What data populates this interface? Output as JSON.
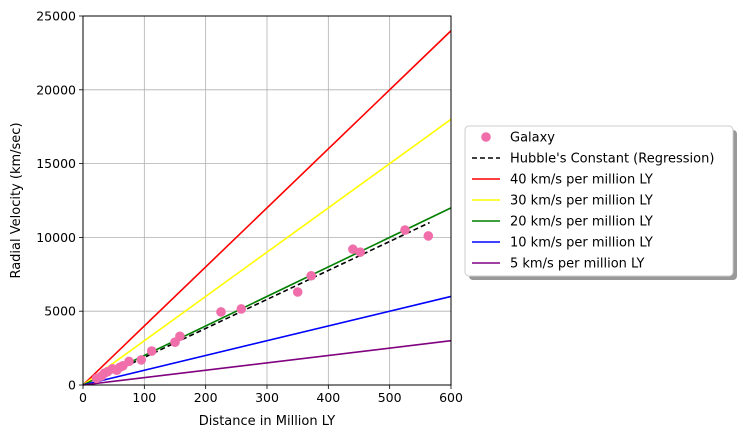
{
  "chart_data": {
    "type": "scatter",
    "xlabel": "Distance in Million LY",
    "ylabel": "Radial Velocity (km/sec)",
    "xlim": [
      0,
      600
    ],
    "ylim": [
      0,
      25000
    ],
    "xticks": [
      "0",
      "100",
      "200",
      "300",
      "400",
      "500",
      "600"
    ],
    "yticks": [
      "0",
      "5000",
      "10000",
      "15000",
      "20000",
      "25000"
    ],
    "grid": true,
    "legend_position": "center-right outside plot",
    "points": {
      "name": "Galaxy",
      "color": "#f06eaa",
      "x": [
        22,
        30,
        35,
        40,
        48,
        55,
        60,
        65,
        75,
        95,
        112,
        150,
        158,
        225,
        258,
        350,
        372,
        440,
        452,
        525,
        563
      ],
      "y": [
        450,
        600,
        800,
        900,
        1100,
        1000,
        1200,
        1300,
        1600,
        1700,
        2300,
        2900,
        3300,
        4950,
        5150,
        6300,
        7400,
        9200,
        9000,
        10500,
        10100
      ]
    },
    "regression": {
      "name": "Hubble's Constant (Regression)",
      "color": "#000000",
      "x": [
        20,
        565
      ],
      "y": [
        300,
        11000
      ]
    },
    "lines": [
      {
        "name": "40 km/s per million LY",
        "color": "#ff0000",
        "slope": 40
      },
      {
        "name": "30 km/s per million LY",
        "color": "#ffff00",
        "slope": 30
      },
      {
        "name": "20 km/s per million LY",
        "color": "#008000",
        "slope": 20
      },
      {
        "name": "10 km/s per million LY",
        "color": "#0000ff",
        "slope": 10
      },
      {
        "name": "5 km/s per million LY",
        "color": "#800080",
        "slope": 5
      }
    ]
  }
}
